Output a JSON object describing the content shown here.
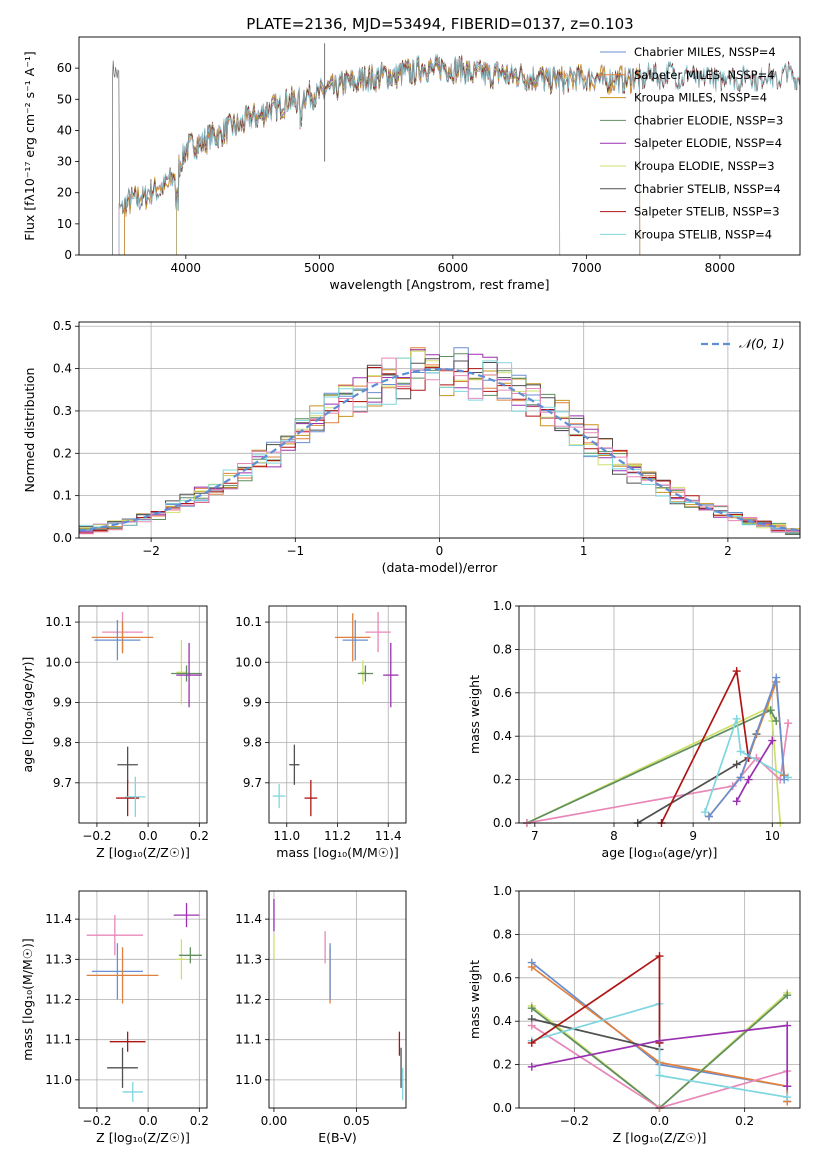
{
  "figure_title": "PLATE=2136, MJD=53494, FIBERID=0137, z=0.103",
  "colors": {
    "chabrier_miles": "#6a8fd0",
    "salpeter_miles": "#e0803f",
    "kroupa_miles": "#c8921f",
    "chabrier_elodie": "#5f8f5f",
    "salpeter_elodie": "#9b30b0",
    "kroupa_elodie": "#cfe06a",
    "chabrier_stelib": "#505050",
    "salpeter_stelib": "#b01515",
    "kroupa_stelib": "#7fd6e0",
    "extra_pink": "#e888b8",
    "normal": "#5f8ed6"
  },
  "chart_data": [
    {
      "id": "spectrum",
      "type": "line",
      "xlabel": "wavelength [Angstrom, rest frame]",
      "ylabel": "Flux [fλ10⁻¹⁷ erg cm⁻² s⁻¹ A⁻¹]",
      "xlim": [
        3200,
        8600
      ],
      "ylim": [
        0,
        70
      ],
      "xticks": [
        4000,
        5000,
        6000,
        7000,
        8000
      ],
      "yticks": [
        0,
        10,
        20,
        30,
        40,
        50,
        60
      ],
      "grid": false,
      "legend_position": "top-right",
      "legend": [
        "Chabrier MILES, N_SSP=4",
        "Salpeter MILES, N_SSP=4",
        "Kroupa MILES, N_SSP=4",
        "Chabrier ELODIE, N_SSP=3",
        "Salpeter ELODIE, N_SSP=4",
        "Kroupa ELODIE, N_SSP=3",
        "Chabrier STELIB, N_SSP=4",
        "Salpeter STELIB, N_SSP=3",
        "Kroupa STELIB, N_SSP=4"
      ],
      "continuum": {
        "x": [
          3500,
          3700,
          3900,
          4000,
          4100,
          4300,
          4500,
          4700,
          4900,
          5000,
          5200,
          5400,
          5600,
          5800,
          6000,
          6200,
          6400,
          6600,
          6800,
          7000,
          7200,
          7400,
          7600,
          7800,
          8000,
          8200,
          8400,
          8600
        ],
        "y": [
          16,
          19,
          24,
          34,
          36,
          40,
          44,
          48,
          51,
          52,
          55,
          57,
          58,
          60,
          60,
          58,
          58,
          57,
          56,
          57,
          56,
          57,
          58,
          57,
          57,
          57,
          57,
          58
        ]
      }
    },
    {
      "id": "residuals",
      "type": "histogram",
      "xlabel": "(data-model)/error",
      "ylabel": "Normed distribution",
      "xlim": [
        -2.5,
        2.5
      ],
      "ylim": [
        0,
        0.51
      ],
      "xticks": [
        -2,
        -1,
        0,
        1,
        2
      ],
      "yticks": [
        0.0,
        0.1,
        0.2,
        0.3,
        0.4,
        0.5
      ],
      "grid": true,
      "legend_position": "top-right",
      "legend": [
        "𝒩(0, 1)"
      ],
      "bin_width": 0.1
    },
    {
      "id": "age_vs_Z",
      "type": "errorbar",
      "xlabel": "Z [log₁₀(Z/Z☉)]",
      "ylabel": "age  [log₁₀(age/yr)]",
      "xlim": [
        -0.27,
        0.23
      ],
      "ylim": [
        9.6,
        10.14
      ],
      "xticks": [
        -0.2,
        0.0,
        0.2
      ],
      "yticks": [
        9.7,
        9.8,
        9.9,
        10.0,
        10.1
      ],
      "points": [
        {
          "model": "extra_pink",
          "x": -0.1,
          "y": 10.075,
          "xerr": 0.08,
          "yerr": 0.05
        },
        {
          "model": "salpeter_miles",
          "x": -0.1,
          "y": 10.062,
          "xerr": 0.12,
          "yerr": 0.04
        },
        {
          "model": "chabrier_miles",
          "x": -0.12,
          "y": 10.055,
          "xerr": 0.09,
          "yerr": 0.05
        },
        {
          "model": "kroupa_elodie",
          "x": 0.13,
          "y": 9.975,
          "xerr": 0.02,
          "yerr": 0.08
        },
        {
          "model": "chabrier_elodie",
          "x": 0.15,
          "y": 9.972,
          "xerr": 0.06,
          "yerr": 0.02
        },
        {
          "model": "salpeter_elodie",
          "x": 0.16,
          "y": 9.968,
          "xerr": 0.05,
          "yerr": 0.08
        },
        {
          "model": "chabrier_stelib",
          "x": -0.08,
          "y": 9.745,
          "xerr": 0.04,
          "yerr": 0.045
        },
        {
          "model": "salpeter_stelib",
          "x": -0.08,
          "y": 9.662,
          "xerr": 0.045,
          "yerr": 0.045
        },
        {
          "model": "kroupa_stelib",
          "x": -0.05,
          "y": 9.665,
          "xerr": 0.04,
          "yerr": 0.05
        }
      ]
    },
    {
      "id": "age_vs_mass",
      "type": "errorbar",
      "xlabel": "mass [log₁₀(M/M☉)]",
      "ylabel": "",
      "xlim": [
        10.93,
        11.47
      ],
      "ylim": [
        9.6,
        10.14
      ],
      "xticks": [
        11.0,
        11.2,
        11.4
      ],
      "yticks": [
        9.7,
        9.8,
        9.9,
        10.0,
        10.1
      ],
      "points": [
        {
          "model": "extra_pink",
          "x": 11.36,
          "y": 10.075,
          "xerr": 0.05,
          "yerr": 0.05
        },
        {
          "model": "salpeter_miles",
          "x": 11.26,
          "y": 10.062,
          "xerr": 0.07,
          "yerr": 0.06
        },
        {
          "model": "chabrier_miles",
          "x": 11.27,
          "y": 10.055,
          "xerr": 0.05,
          "yerr": 0.05
        },
        {
          "model": "kroupa_elodie",
          "x": 11.3,
          "y": 9.975,
          "xerr": 0.01,
          "yerr": 0.03
        },
        {
          "model": "chabrier_elodie",
          "x": 11.31,
          "y": 9.972,
          "xerr": 0.03,
          "yerr": 0.02
        },
        {
          "model": "salpeter_elodie",
          "x": 11.41,
          "y": 9.968,
          "xerr": 0.03,
          "yerr": 0.08
        },
        {
          "model": "chabrier_stelib",
          "x": 11.03,
          "y": 9.745,
          "xerr": 0.02,
          "yerr": 0.05
        },
        {
          "model": "salpeter_stelib",
          "x": 11.095,
          "y": 9.662,
          "xerr": 0.025,
          "yerr": 0.045
        },
        {
          "model": "kroupa_stelib",
          "x": 10.97,
          "y": 9.667,
          "xerr": 0.025,
          "yerr": 0.03
        }
      ]
    },
    {
      "id": "weight_vs_age",
      "type": "line",
      "xlabel": "age  [log₁₀(age/yr)]",
      "ylabel": "mass weight",
      "xlim": [
        6.8,
        10.35
      ],
      "ylim": [
        0,
        1.0
      ],
      "xticks": [
        7,
        8,
        9,
        10
      ],
      "yticks": [
        0.0,
        0.2,
        0.4,
        0.6,
        0.8,
        1.0
      ],
      "grid": true,
      "series": [
        {
          "model": "kroupa_elodie",
          "x": [
            6.9,
            9.95,
            10.0,
            10.1
          ],
          "y": [
            0.0,
            0.53,
            0.47,
            0.0
          ]
        },
        {
          "model": "chabrier_elodie",
          "x": [
            6.9,
            9.98,
            10.05
          ],
          "y": [
            0.0,
            0.52,
            0.47
          ]
        },
        {
          "model": "extra_pink",
          "x": [
            6.9,
            9.5,
            9.8,
            10.1,
            10.2
          ],
          "y": [
            0.0,
            0.17,
            0.3,
            0.2,
            0.46
          ]
        },
        {
          "model": "chabrier_stelib",
          "x": [
            8.3,
            9.55,
            9.7,
            9.8
          ],
          "y": [
            0.0,
            0.27,
            0.3,
            0.41
          ]
        },
        {
          "model": "salpeter_stelib",
          "x": [
            8.6,
            9.55,
            9.7
          ],
          "y": [
            0.0,
            0.7,
            0.3
          ]
        },
        {
          "model": "kroupa_stelib",
          "x": [
            9.15,
            9.55,
            9.6,
            10.2
          ],
          "y": [
            0.05,
            0.48,
            0.33,
            0.21
          ]
        },
        {
          "model": "salpeter_miles",
          "x": [
            9.2,
            9.6,
            10.05,
            10.15
          ],
          "y": [
            0.03,
            0.21,
            0.65,
            0.22
          ]
        },
        {
          "model": "chabrier_miles",
          "x": [
            9.2,
            9.6,
            10.05,
            10.15
          ],
          "y": [
            0.03,
            0.21,
            0.67,
            0.2
          ]
        },
        {
          "model": "salpeter_elodie",
          "x": [
            9.55,
            9.7,
            10.0
          ],
          "y": [
            0.1,
            0.2,
            0.38
          ]
        }
      ]
    },
    {
      "id": "mass_vs_Z",
      "type": "errorbar",
      "xlabel": "Z [log₁₀(Z/Z☉)]",
      "ylabel": "mass [log₁₀(M/M☉)]",
      "xlim": [
        -0.27,
        0.23
      ],
      "ylim": [
        10.93,
        11.47
      ],
      "xticks": [
        -0.2,
        0.0,
        0.2
      ],
      "yticks": [
        11.0,
        11.1,
        11.2,
        11.3,
        11.4
      ],
      "points": [
        {
          "model": "salpeter_elodie",
          "x": 0.15,
          "y": 11.41,
          "xerr": 0.05,
          "yerr": 0.03
        },
        {
          "model": "extra_pink",
          "x": -0.13,
          "y": 11.36,
          "xerr": 0.11,
          "yerr": 0.05
        },
        {
          "model": "kroupa_elodie",
          "x": 0.13,
          "y": 11.3,
          "xerr": 0.02,
          "yerr": 0.05
        },
        {
          "model": "chabrier_elodie",
          "x": 0.165,
          "y": 11.31,
          "xerr": 0.045,
          "yerr": 0.02
        },
        {
          "model": "chabrier_miles",
          "x": -0.12,
          "y": 11.27,
          "xerr": 0.1,
          "yerr": 0.07
        },
        {
          "model": "salpeter_miles",
          "x": -0.1,
          "y": 11.26,
          "xerr": 0.14,
          "yerr": 0.07
        },
        {
          "model": "salpeter_stelib",
          "x": -0.08,
          "y": 11.095,
          "xerr": 0.07,
          "yerr": 0.025
        },
        {
          "model": "chabrier_stelib",
          "x": -0.1,
          "y": 11.03,
          "xerr": 0.06,
          "yerr": 0.05
        },
        {
          "model": "kroupa_stelib",
          "x": -0.06,
          "y": 10.97,
          "xerr": 0.04,
          "yerr": 0.025
        }
      ]
    },
    {
      "id": "mass_vs_ebv",
      "type": "errorbar",
      "xlabel": "E(B-V)",
      "ylabel": "",
      "xlim": [
        -0.003,
        0.08
      ],
      "ylim": [
        10.93,
        11.47
      ],
      "xticks": [
        0.0,
        0.05
      ],
      "yticks": [
        11.0,
        11.1,
        11.2,
        11.3,
        11.4
      ],
      "points": [
        {
          "model": "salpeter_elodie",
          "x": 0.0,
          "y": 11.41,
          "xerr": 0.0,
          "yerr": 0.04
        },
        {
          "model": "kroupa_elodie",
          "x": 0.0,
          "y": 11.33,
          "xerr": 0.0,
          "yerr": 0.03
        },
        {
          "model": "extra_pink",
          "x": 0.031,
          "y": 11.33,
          "xerr": 0.0,
          "yerr": 0.04
        },
        {
          "model": "salpeter_miles",
          "x": 0.034,
          "y": 11.26,
          "xerr": 0.0,
          "yerr": 0.07
        },
        {
          "model": "chabrier_miles",
          "x": 0.034,
          "y": 11.27,
          "xerr": 0.0,
          "yerr": 0.07
        },
        {
          "model": "salpeter_stelib",
          "x": 0.076,
          "y": 11.09,
          "xerr": 0.0,
          "yerr": 0.03
        },
        {
          "model": "chabrier_stelib",
          "x": 0.077,
          "y": 11.03,
          "xerr": 0.0,
          "yerr": 0.05
        },
        {
          "model": "kroupa_stelib",
          "x": 0.078,
          "y": 10.99,
          "xerr": 0.0,
          "yerr": 0.04
        }
      ]
    },
    {
      "id": "weight_vs_Z",
      "type": "line",
      "xlabel": "Z [log₁₀(Z/Z☉)]",
      "ylabel": "mass weight",
      "xlim": [
        -0.33,
        0.33
      ],
      "ylim": [
        0,
        1.0
      ],
      "xticks": [
        -0.2,
        0.0,
        0.2
      ],
      "yticks": [
        0.0,
        0.2,
        0.4,
        0.6,
        0.8,
        1.0
      ],
      "grid": true,
      "series": [
        {
          "model": "chabrier_miles",
          "x": [
            -0.3,
            0.0,
            0.3,
            0.3
          ],
          "y": [
            0.67,
            0.2,
            0.1,
            0.03
          ]
        },
        {
          "model": "salpeter_miles",
          "x": [
            -0.3,
            0.0,
            0.3,
            0.3
          ],
          "y": [
            0.65,
            0.21,
            0.1,
            0.03
          ]
        },
        {
          "model": "kroupa_elodie",
          "x": [
            -0.3,
            0.0,
            0.3
          ],
          "y": [
            0.47,
            0.0,
            0.53
          ]
        },
        {
          "model": "chabrier_elodie",
          "x": [
            -0.3,
            0.0,
            0.3
          ],
          "y": [
            0.46,
            0.0,
            0.52
          ]
        },
        {
          "model": "chabrier_stelib",
          "x": [
            -0.3,
            0.0,
            0.0
          ],
          "y": [
            0.41,
            0.27,
            0.3
          ]
        },
        {
          "model": "extra_pink",
          "x": [
            -0.3,
            0.0,
            0.3,
            0.3
          ],
          "y": [
            0.38,
            0.0,
            0.17,
            0.1
          ]
        },
        {
          "model": "kroupa_stelib",
          "x": [
            -0.3,
            0.0,
            0.0,
            0.3
          ],
          "y": [
            0.31,
            0.48,
            0.15,
            0.05
          ]
        },
        {
          "model": "salpeter_stelib",
          "x": [
            -0.3,
            0.0,
            0.0
          ],
          "y": [
            0.3,
            0.7,
            0.3
          ]
        },
        {
          "model": "salpeter_elodie",
          "x": [
            -0.3,
            0.0,
            0.3,
            0.3
          ],
          "y": [
            0.19,
            0.31,
            0.38,
            0.1
          ]
        }
      ]
    }
  ]
}
